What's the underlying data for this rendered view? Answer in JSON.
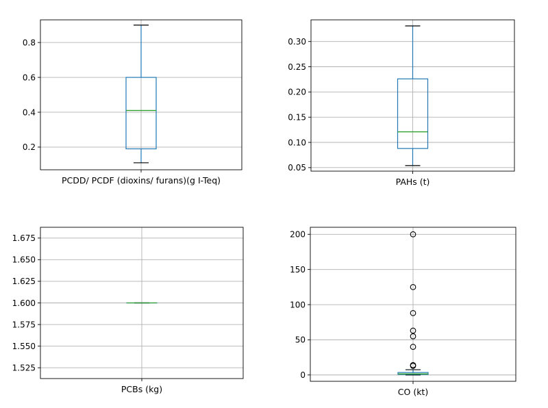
{
  "colors": {
    "box": "#1f77b4",
    "median": "#2ca02c",
    "whisker": "#1f77b4",
    "flier": "#000000",
    "grid": "#b0b0b0",
    "frame": "#000000"
  },
  "chart_data": [
    {
      "type": "box",
      "xlabel": "PCDD/ PCDF (dioxins/ furans)(g I-Teq)",
      "ylim": [
        0.07,
        0.93
      ],
      "grid": true,
      "yticks": [
        0.2,
        0.4,
        0.6,
        0.8
      ],
      "ytick_labels": [
        "0.2",
        "0.4",
        "0.6",
        "0.8"
      ],
      "box": {
        "whisker_low": 0.11,
        "q1": 0.19,
        "median": 0.41,
        "q3": 0.6,
        "whisker_high": 0.9
      },
      "fliers": []
    },
    {
      "type": "box",
      "xlabel": "PAHs (t)",
      "ylim": [
        0.043,
        0.343
      ],
      "grid": true,
      "yticks": [
        0.05,
        0.1,
        0.15,
        0.2,
        0.25,
        0.3
      ],
      "ytick_labels": [
        "0.05",
        "0.10",
        "0.15",
        "0.20",
        "0.25",
        "0.30"
      ],
      "box": {
        "whisker_low": 0.054,
        "q1": 0.088,
        "median": 0.121,
        "q3": 0.226,
        "whisker_high": 0.331
      },
      "fliers": []
    },
    {
      "type": "box",
      "xlabel": "PCBs (kg)",
      "ylim": [
        1.5125,
        1.6875
      ],
      "grid": true,
      "yticks": [
        1.525,
        1.55,
        1.575,
        1.6,
        1.625,
        1.65,
        1.675
      ],
      "ytick_labels": [
        "1.525",
        "1.550",
        "1.575",
        "1.600",
        "1.625",
        "1.650",
        "1.675"
      ],
      "box": {
        "whisker_low": 1.6,
        "q1": 1.6,
        "median": 1.6,
        "q3": 1.6,
        "whisker_high": 1.6
      },
      "fliers": []
    },
    {
      "type": "box",
      "xlabel": "CO (kt)",
      "ylim": [
        -9,
        210
      ],
      "grid": true,
      "yticks": [
        0,
        50,
        100,
        150,
        200
      ],
      "ytick_labels": [
        "0",
        "50",
        "100",
        "150",
        "200"
      ],
      "box": {
        "whisker_low": 0,
        "q1": 0.8,
        "median": 1.5,
        "q3": 3.5,
        "whisker_high": 7.5
      },
      "fliers": [
        13,
        14,
        40,
        55,
        63,
        88,
        125,
        200
      ]
    }
  ]
}
